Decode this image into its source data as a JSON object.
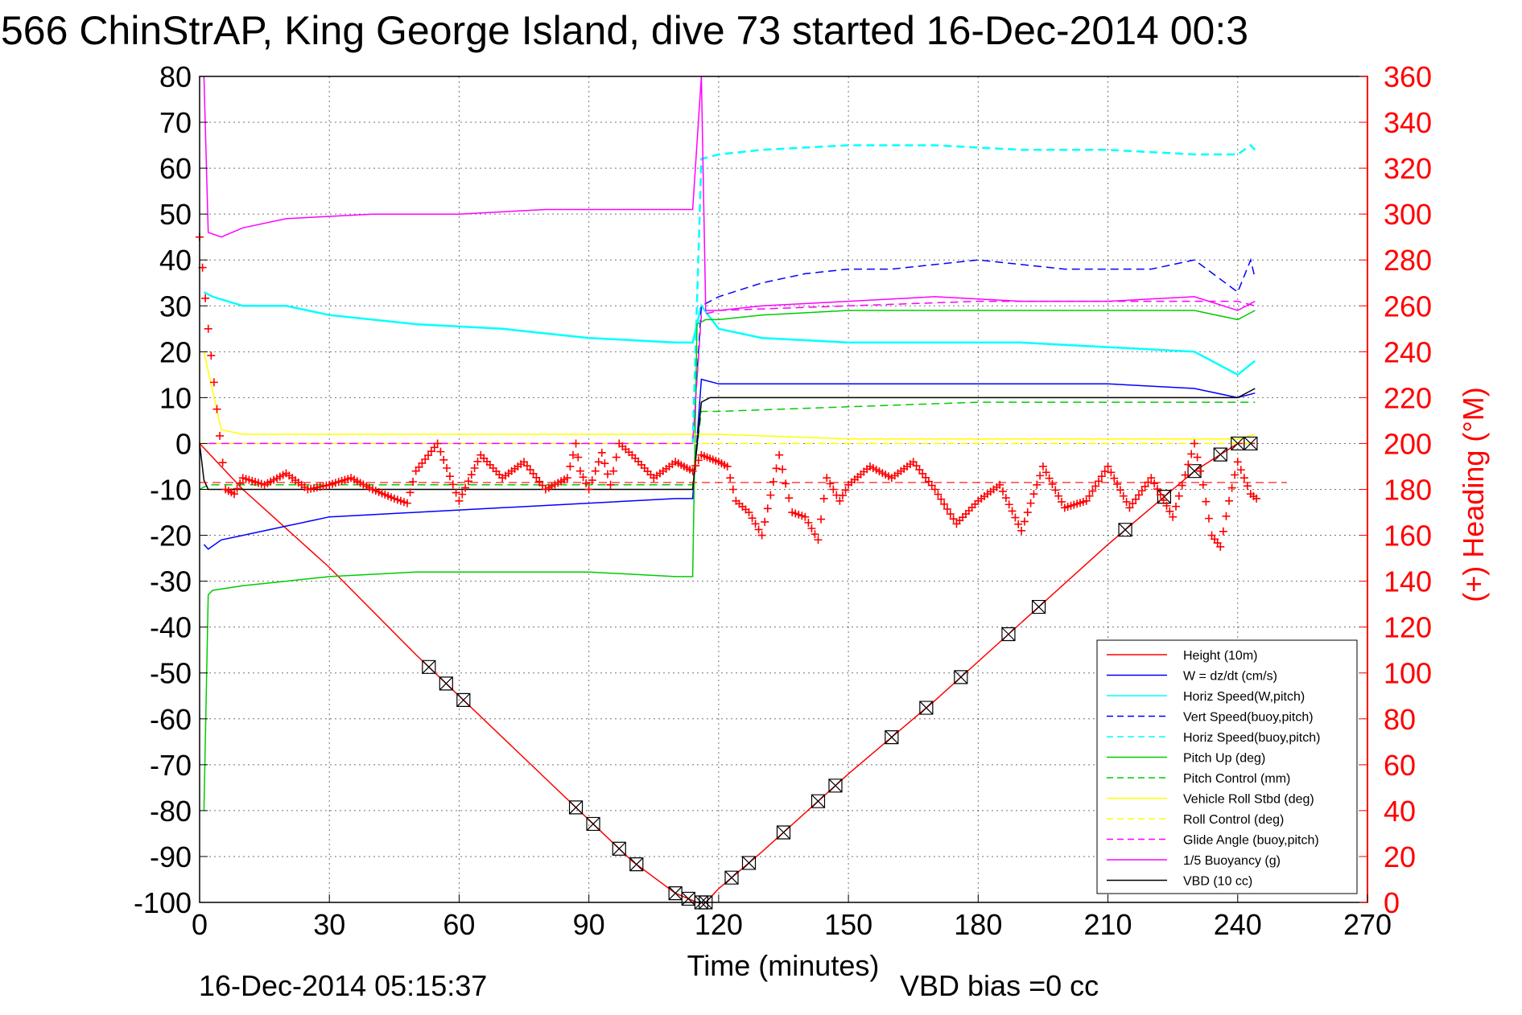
{
  "header": {
    "title": "566 ChinStrAP, King George Island, dive 73 started 16-Dec-2014 00:3"
  },
  "footer": {
    "timestamp": "16-Dec-2014 05:15:37",
    "vbd_bias": "VBD bias =0 cc"
  },
  "colors": {
    "left_axis": "#000000",
    "right_axis": "#ff0000",
    "grid": "#000000"
  },
  "chart_data": {
    "type": "line",
    "title": "566 ChinStrAP, King George Island, dive 73 started 16-Dec-2014 00:3",
    "xlabel": "Time (minutes)",
    "ylabel": "",
    "ylabel_right": "(+) Heading (°M)",
    "xlim": [
      0,
      270
    ],
    "ylim": [
      -100,
      80
    ],
    "ylim_right": [
      0,
      360
    ],
    "x_ticks": [
      "0",
      "30",
      "60",
      "90",
      "120",
      "150",
      "180",
      "210",
      "240",
      "270"
    ],
    "y_ticks": [
      "80",
      "70",
      "60",
      "50",
      "40",
      "30",
      "20",
      "10",
      "0",
      "-10",
      "-20",
      "-30",
      "-40",
      "-50",
      "-60",
      "-70",
      "-80",
      "-90",
      "-100"
    ],
    "y_right_ticks": [
      "360",
      "340",
      "320",
      "300",
      "280",
      "260",
      "240",
      "220",
      "200",
      "180",
      "160",
      "140",
      "120",
      "100",
      "80",
      "60",
      "40",
      "20",
      "0"
    ],
    "grid": true,
    "legend_position": "bottom-right",
    "series": [
      {
        "name": "Height (10m)",
        "color": "#ff0000",
        "style": "solid",
        "x": [
          0,
          5,
          10,
          30,
          50,
          60,
          80,
          100,
          110,
          115,
          117,
          120,
          130,
          150,
          170,
          190,
          210,
          230,
          240,
          244
        ],
        "y": [
          0,
          -5,
          -10,
          -27,
          -46,
          -55,
          -73,
          -91,
          -98,
          -100,
          -100,
          -97,
          -89,
          -72,
          -56,
          -39,
          -22,
          -6,
          0,
          0
        ]
      },
      {
        "name": "W = dz/dt (cm/s)",
        "color": "#0000ff",
        "style": "solid",
        "x": [
          1,
          2,
          5,
          10,
          20,
          30,
          50,
          70,
          90,
          110,
          114,
          116,
          120,
          130,
          150,
          170,
          190,
          210,
          230,
          240,
          244
        ],
        "y": [
          -22,
          -23,
          -21,
          -20,
          -18,
          -16,
          -15,
          -14,
          -13,
          -12,
          -12,
          14,
          13,
          13,
          13,
          13,
          13,
          13,
          12,
          10,
          11
        ]
      },
      {
        "name": "Horiz Speed(W,pitch)",
        "color": "#00ffff",
        "style": "solid",
        "x": [
          1,
          3,
          10,
          20,
          30,
          50,
          70,
          90,
          110,
          114,
          116,
          120,
          130,
          150,
          170,
          190,
          210,
          230,
          240,
          244
        ],
        "y": [
          33,
          32,
          30,
          30,
          28,
          26,
          25,
          23,
          22,
          22,
          30,
          25,
          23,
          22,
          22,
          22,
          21,
          20,
          15,
          18
        ]
      },
      {
        "name": "Vert Speed(buoy,pitch)",
        "color": "#0000ff",
        "style": "dashed",
        "x": [
          114,
          116,
          120,
          130,
          140,
          150,
          160,
          170,
          180,
          190,
          200,
          210,
          220,
          230,
          240,
          243,
          244
        ],
        "y": [
          0,
          30,
          32,
          35,
          37,
          38,
          38,
          39,
          40,
          39,
          38,
          38,
          38,
          40,
          33,
          40,
          36
        ]
      },
      {
        "name": "Horiz Speed(buoy,pitch)",
        "color": "#00ffff",
        "style": "dashed",
        "x": [
          114,
          116,
          120,
          130,
          150,
          170,
          190,
          210,
          230,
          240,
          243,
          244
        ],
        "y": [
          0,
          62,
          63,
          64,
          65,
          65,
          64,
          64,
          63,
          63,
          65,
          64
        ]
      },
      {
        "name": "Pitch Up (deg)",
        "color": "#00cc00",
        "style": "solid",
        "x": [
          1,
          2,
          3,
          10,
          20,
          30,
          50,
          70,
          90,
          110,
          114,
          115,
          117,
          120,
          130,
          150,
          170,
          190,
          210,
          230,
          240,
          244
        ],
        "y": [
          -80,
          -33,
          -32,
          -31,
          -30,
          -29,
          -28,
          -28,
          -28,
          -29,
          -29,
          26,
          27,
          27,
          28,
          29,
          29,
          29,
          29,
          29,
          27,
          29
        ]
      },
      {
        "name": "Pitch Control (mm)",
        "color": "#00cc00",
        "style": "dashed",
        "x": [
          0,
          2,
          30,
          60,
          90,
          114,
          116,
          120,
          150,
          180,
          210,
          240,
          244
        ],
        "y": [
          -10,
          -9,
          -9,
          -9,
          -9,
          -9,
          7,
          7,
          8,
          9,
          9,
          9,
          9
        ]
      },
      {
        "name": "Vehicle Roll Stbd (deg)",
        "color": "#ffff00",
        "style": "solid",
        "x": [
          1,
          5,
          10,
          30,
          50,
          70,
          90,
          110,
          114,
          116,
          120,
          150,
          180,
          210,
          240,
          244
        ],
        "y": [
          20,
          3,
          2,
          2,
          2,
          2,
          2,
          2,
          2,
          2,
          2,
          1,
          1,
          1,
          1,
          2
        ]
      },
      {
        "name": "Roll Control (deg)",
        "color": "#ffff00",
        "style": "dashed",
        "x": [
          0,
          5,
          50,
          100,
          114,
          116,
          124,
          150,
          200,
          240,
          244
        ],
        "y": [
          0,
          0,
          0,
          0,
          0,
          0,
          0,
          0,
          0,
          0,
          0
        ]
      },
      {
        "name": "Glide Angle (buoy,pitch)",
        "color": "#ff00ff",
        "style": "dashed",
        "x": [
          2,
          30,
          60,
          90,
          114,
          116,
          120,
          150,
          180,
          210,
          240,
          244
        ],
        "y": [
          0,
          0,
          0,
          0,
          0,
          28,
          29,
          30,
          31,
          31,
          31,
          30
        ]
      },
      {
        "name": "1/5 Buoyancy (g)",
        "color": "#ff00ff",
        "style": "solid",
        "x": [
          1,
          2,
          5,
          10,
          20,
          40,
          60,
          80,
          100,
          114,
          116,
          117,
          120,
          130,
          150,
          170,
          190,
          210,
          230,
          240,
          244
        ],
        "y": [
          80,
          46,
          45,
          47,
          49,
          50,
          50,
          51,
          51,
          51,
          80,
          29,
          29,
          30,
          31,
          32,
          31,
          31,
          32,
          29,
          31
        ]
      },
      {
        "name": "VBD (10 cc)",
        "color": "#000000",
        "style": "solid",
        "x": [
          0,
          1,
          2,
          30,
          60,
          90,
          114,
          116,
          118,
          120,
          150,
          180,
          210,
          240,
          244
        ],
        "y": [
          0,
          -8,
          -10,
          -10,
          -10,
          -10,
          -10,
          9,
          10,
          10,
          10,
          10,
          10,
          10,
          12
        ]
      }
    ],
    "heading": {
      "name": "(+) Heading (°M)",
      "color": "#ff0000",
      "marker": "+",
      "axis": "right",
      "x": [
        0,
        2,
        4,
        6,
        8,
        10,
        15,
        20,
        25,
        30,
        35,
        40,
        45,
        48,
        50,
        55,
        60,
        65,
        70,
        75,
        80,
        85,
        87,
        88,
        90,
        93,
        95,
        97,
        100,
        105,
        110,
        114,
        116,
        120,
        122,
        124,
        127,
        130,
        134,
        137,
        140,
        143,
        145,
        148,
        150,
        155,
        160,
        165,
        170,
        175,
        180,
        185,
        190,
        195,
        200,
        205,
        210,
        215,
        220,
        225,
        230,
        232,
        234,
        236,
        238,
        240,
        243,
        245
      ],
      "y": [
        290,
        250,
        215,
        180,
        178,
        185,
        182,
        187,
        180,
        182,
        185,
        180,
        176,
        174,
        188,
        200,
        175,
        195,
        185,
        192,
        180,
        185,
        200,
        188,
        180,
        196,
        182,
        200,
        195,
        185,
        192,
        188,
        195,
        192,
        190,
        175,
        170,
        160,
        195,
        170,
        168,
        158,
        185,
        175,
        182,
        190,
        185,
        192,
        180,
        165,
        175,
        182,
        162,
        190,
        172,
        175,
        190,
        172,
        185,
        168,
        200,
        182,
        160,
        155,
        175,
        192,
        178,
        175
      ]
    }
  }
}
